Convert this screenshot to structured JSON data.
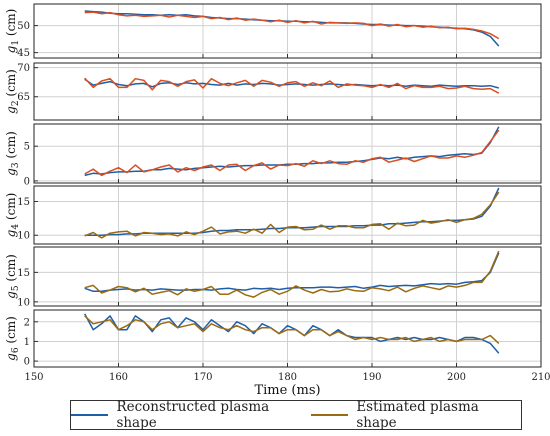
{
  "chart_data": {
    "type": "line",
    "xlabel": "Time (ms)",
    "xlim": [
      150,
      210
    ],
    "xticks": [
      150,
      160,
      170,
      180,
      190,
      200,
      210
    ],
    "grid": true,
    "legend": {
      "placement": "bottom",
      "entries": [
        {
          "name": "Reconstructed plasma shape",
          "color": "#1f5fa8"
        },
        {
          "name": "Estimated plasma shape",
          "color": "#9c6a12"
        }
      ]
    },
    "x": [
      156,
      157,
      158,
      159,
      160,
      161,
      162,
      163,
      164,
      165,
      166,
      167,
      168,
      169,
      170,
      171,
      172,
      173,
      174,
      175,
      176,
      177,
      178,
      179,
      180,
      181,
      182,
      183,
      184,
      185,
      186,
      187,
      188,
      189,
      190,
      191,
      192,
      193,
      194,
      195,
      196,
      197,
      198,
      199,
      200,
      201,
      202,
      203,
      204,
      205
    ],
    "panels": [
      {
        "label_base": "g",
        "label_sub": "1",
        "label_unit": " (cm)",
        "ylim": [
          44,
          54
        ],
        "yticks": [
          45,
          50
        ],
        "estimated_color": "#d94f21",
        "reconstructed": [
          52.7,
          52.6,
          52.5,
          52.3,
          52.2,
          52.2,
          52.1,
          52.0,
          52.0,
          51.9,
          52.0,
          51.9,
          52.0,
          51.8,
          51.7,
          51.5,
          51.4,
          51.3,
          51.3,
          51.2,
          51.1,
          51.0,
          50.9,
          50.9,
          50.8,
          50.8,
          50.7,
          50.7,
          50.6,
          50.5,
          50.5,
          50.5,
          50.4,
          50.3,
          50.2,
          50.2,
          50.1,
          50.1,
          50.0,
          50.0,
          49.9,
          49.8,
          49.7,
          49.6,
          49.5,
          49.4,
          49.2,
          48.8,
          48.0,
          46.2
        ],
        "estimated": [
          52.4,
          52.5,
          52.2,
          52.4,
          52.0,
          51.8,
          51.9,
          51.7,
          51.8,
          51.9,
          51.6,
          51.9,
          51.7,
          51.5,
          51.7,
          51.3,
          51.5,
          51.1,
          51.4,
          51.0,
          51.2,
          51.0,
          50.7,
          51.0,
          50.6,
          50.9,
          50.5,
          50.8,
          50.3,
          50.6,
          50.5,
          50.4,
          50.5,
          50.4,
          50.0,
          50.3,
          49.9,
          50.2,
          49.8,
          50.0,
          49.7,
          49.9,
          49.6,
          49.7,
          49.4,
          49.5,
          49.3,
          49.0,
          48.5,
          47.6
        ]
      },
      {
        "label_base": "g",
        "label_sub": "2",
        "label_unit": " (cm)",
        "ylim": [
          61,
          70.8
        ],
        "yticks": [
          65,
          70
        ],
        "estimated_color": "#d94f21",
        "reconstructed": [
          68.0,
          67.0,
          67.3,
          67.6,
          67.1,
          66.9,
          67.2,
          67.3,
          66.7,
          67.3,
          67.4,
          67.1,
          67.4,
          67.2,
          67.3,
          67.1,
          67.0,
          67.3,
          67.0,
          67.2,
          67.1,
          67.3,
          67.2,
          67.0,
          67.1,
          67.2,
          67.1,
          67.0,
          67.1,
          67.2,
          67.1,
          67.0,
          67.1,
          67.0,
          66.9,
          67.0,
          66.9,
          67.0,
          66.8,
          67.0,
          66.9,
          66.8,
          67.0,
          66.9,
          66.8,
          66.9,
          66.9,
          66.8,
          66.9,
          66.5
        ],
        "estimated": [
          68.2,
          66.6,
          67.7,
          68.1,
          66.6,
          66.6,
          68.1,
          67.8,
          66.2,
          67.8,
          67.6,
          66.8,
          67.6,
          67.9,
          66.5,
          68.1,
          67.3,
          66.9,
          67.4,
          67.8,
          66.8,
          67.8,
          67.5,
          66.8,
          67.4,
          67.6,
          66.8,
          67.4,
          66.9,
          67.7,
          66.6,
          67.2,
          67.0,
          66.9,
          66.6,
          67.1,
          66.6,
          67.3,
          66.4,
          66.9,
          66.6,
          66.6,
          66.8,
          66.4,
          66.5,
          66.8,
          66.4,
          66.3,
          66.4,
          65.6
        ]
      },
      {
        "label_base": "g",
        "label_sub": "3",
        "label_unit": " (cm)",
        "ylim": [
          -0.3,
          8.2
        ],
        "yticks": [
          0,
          5
        ],
        "estimated_color": "#d94f21",
        "reconstructed": [
          0.8,
          1.1,
          1.0,
          1.2,
          1.3,
          1.3,
          1.4,
          1.4,
          1.6,
          1.6,
          1.8,
          1.7,
          1.6,
          1.8,
          1.9,
          2.0,
          2.1,
          2.0,
          2.1,
          2.2,
          2.2,
          2.3,
          2.3,
          2.3,
          2.4,
          2.4,
          2.5,
          2.5,
          2.6,
          2.6,
          2.7,
          2.7,
          2.8,
          2.9,
          3.1,
          3.3,
          3.2,
          3.4,
          3.2,
          3.4,
          3.5,
          3.6,
          3.5,
          3.7,
          3.8,
          3.9,
          3.8,
          4.0,
          5.5,
          7.8
        ],
        "estimated": [
          1.0,
          1.7,
          0.8,
          1.4,
          1.9,
          1.2,
          2.3,
          1.3,
          1.6,
          2.0,
          2.3,
          1.3,
          1.9,
          1.5,
          2.0,
          2.3,
          1.5,
          2.3,
          2.4,
          1.5,
          2.2,
          2.6,
          1.7,
          2.3,
          2.2,
          2.5,
          2.1,
          2.9,
          2.5,
          2.9,
          2.5,
          2.4,
          2.9,
          2.7,
          3.2,
          3.4,
          2.7,
          3.0,
          3.3,
          2.8,
          3.2,
          3.6,
          3.3,
          3.3,
          3.6,
          3.4,
          3.7,
          4.1,
          5.7,
          7.3
        ]
      },
      {
        "label_base": "g",
        "label_sub": "4",
        "label_unit": " (cm)",
        "ylim": [
          8.7,
          17.3
        ],
        "yticks": [
          10,
          15
        ],
        "estimated_color": "#9c6a12",
        "reconstructed": [
          10.0,
          10.0,
          10.0,
          10.1,
          10.1,
          10.2,
          10.2,
          10.3,
          10.3,
          10.3,
          10.3,
          10.3,
          10.3,
          10.3,
          10.4,
          10.6,
          10.7,
          10.7,
          10.8,
          10.8,
          10.8,
          10.9,
          11.0,
          11.0,
          11.1,
          11.1,
          11.1,
          11.2,
          11.3,
          11.3,
          11.3,
          11.3,
          11.4,
          11.4,
          11.5,
          11.5,
          11.7,
          11.7,
          11.8,
          11.9,
          12.0,
          12.0,
          12.1,
          12.2,
          12.2,
          12.3,
          12.4,
          12.8,
          14.3,
          17.0
        ],
        "estimated": [
          9.9,
          10.4,
          9.6,
          10.3,
          10.5,
          10.6,
          9.9,
          10.4,
          10.3,
          10.1,
          10.2,
          9.9,
          10.5,
          10.1,
          10.6,
          11.2,
          10.2,
          10.5,
          10.6,
          10.3,
          10.9,
          10.3,
          11.6,
          10.4,
          11.2,
          11.3,
          10.8,
          10.9,
          11.5,
          10.9,
          11.4,
          11.4,
          11.1,
          11.1,
          11.6,
          11.7,
          10.9,
          11.8,
          11.4,
          11.5,
          12.2,
          11.8,
          12.0,
          12.3,
          11.9,
          12.3,
          12.5,
          13.1,
          14.5,
          16.4
        ]
      },
      {
        "label_base": "g",
        "label_sub": "5",
        "label_unit": " (cm)",
        "ylim": [
          9.3,
          19.3
        ],
        "yticks": [
          10,
          15
        ],
        "estimated_color": "#9c6a12",
        "reconstructed": [
          12.3,
          11.8,
          11.8,
          12.0,
          12.1,
          12.2,
          12.0,
          12.1,
          12.0,
          12.2,
          12.1,
          12.0,
          12.0,
          12.1,
          12.1,
          12.0,
          12.2,
          12.3,
          12.1,
          12.0,
          12.3,
          12.2,
          12.3,
          12.1,
          12.3,
          12.4,
          12.4,
          12.4,
          12.5,
          12.5,
          12.4,
          12.5,
          12.6,
          12.3,
          12.5,
          12.8,
          12.6,
          12.7,
          12.8,
          12.7,
          12.9,
          13.1,
          13.0,
          13.1,
          13.0,
          13.3,
          13.4,
          13.6,
          15.0,
          18.3
        ],
        "estimated": [
          12.4,
          12.8,
          11.5,
          12.0,
          12.6,
          12.4,
          11.7,
          12.3,
          11.3,
          11.6,
          11.9,
          11.2,
          12.2,
          11.8,
          12.1,
          12.6,
          11.3,
          11.3,
          12.0,
          11.2,
          10.8,
          11.6,
          12.1,
          11.3,
          11.8,
          12.7,
          12.0,
          11.5,
          12.1,
          11.7,
          11.8,
          12.2,
          11.9,
          11.8,
          12.4,
          12.2,
          11.9,
          12.5,
          11.7,
          12.3,
          12.7,
          12.4,
          12.1,
          12.7,
          12.5,
          12.8,
          13.3,
          13.3,
          15.2,
          18.6
        ]
      },
      {
        "label_base": "g",
        "label_sub": "6",
        "label_unit": " (cm)",
        "ylim": [
          -0.3,
          2.6
        ],
        "yticks": [
          0,
          1,
          2
        ],
        "estimated_color": "#9c6a12",
        "reconstructed": [
          2.4,
          1.6,
          1.9,
          2.3,
          1.6,
          1.6,
          2.3,
          2.0,
          1.5,
          2.1,
          2.2,
          1.7,
          2.2,
          2.0,
          1.6,
          2.1,
          1.8,
          1.5,
          2.0,
          1.8,
          1.4,
          1.9,
          1.7,
          1.4,
          1.8,
          1.6,
          1.3,
          1.8,
          1.6,
          1.3,
          1.6,
          1.3,
          1.2,
          1.2,
          1.2,
          1.0,
          1.1,
          1.2,
          1.1,
          1.2,
          1.1,
          1.1,
          1.2,
          1.1,
          1.0,
          1.2,
          1.2,
          1.1,
          0.9,
          0.4
        ],
        "estimated": [
          2.3,
          1.9,
          2.0,
          2.1,
          1.6,
          1.8,
          2.1,
          2.0,
          1.6,
          1.9,
          2.0,
          1.7,
          1.8,
          1.9,
          1.5,
          1.9,
          1.7,
          1.6,
          1.8,
          1.6,
          1.5,
          1.7,
          1.7,
          1.4,
          1.6,
          1.6,
          1.3,
          1.6,
          1.6,
          1.3,
          1.5,
          1.3,
          1.1,
          1.2,
          1.1,
          1.2,
          1.1,
          1.1,
          1.2,
          1.0,
          1.1,
          1.2,
          1.0,
          1.1,
          1.0,
          1.1,
          1.1,
          1.1,
          1.3,
          0.9
        ]
      }
    ]
  }
}
